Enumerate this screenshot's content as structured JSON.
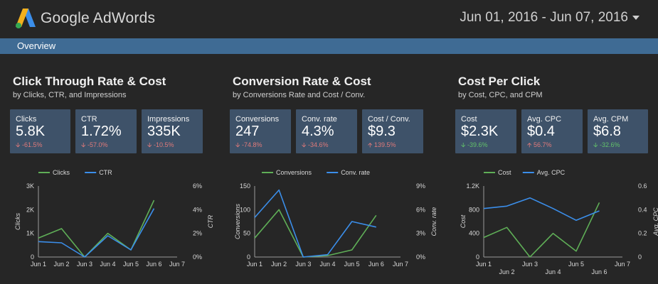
{
  "header": {
    "brand": "Google AdWords",
    "date_range": "Jun 01, 2016 - Jun 07, 2016"
  },
  "nav": {
    "overview": "Overview"
  },
  "colors": {
    "green": "#5fae57",
    "blue": "#3b8eea",
    "card": "#3e5269",
    "bar": "#3f6b94"
  },
  "sections": [
    {
      "title": "Click Through Rate & Cost",
      "subtitle": "by Clicks, CTR, and Impressions",
      "cards": [
        {
          "label": "Clicks",
          "value": "5.8K",
          "delta": "-61.5%",
          "dir": "down"
        },
        {
          "label": "CTR",
          "value": "1.72%",
          "delta": "-57.0%",
          "dir": "down"
        },
        {
          "label": "Impressions",
          "value": "335K",
          "delta": "-10.5%",
          "dir": "down"
        }
      ]
    },
    {
      "title": "Conversion Rate & Cost",
      "subtitle": "by Conversions Rate and Cost / Conv.",
      "cards": [
        {
          "label": "Conversions",
          "value": "247",
          "delta": "-74.8%",
          "dir": "down"
        },
        {
          "label": "Conv. rate",
          "value": "4.3%",
          "delta": "-34.6%",
          "dir": "down"
        },
        {
          "label": "Cost / Conv.",
          "value": "$9.3",
          "delta": "139.5%",
          "dir": "up-bad"
        }
      ]
    },
    {
      "title": "Cost Per Click",
      "subtitle": "by Cost, CPC, and CPM",
      "cards": [
        {
          "label": "Cost",
          "value": "$2.3K",
          "delta": "-39.6%",
          "dir": "down-good"
        },
        {
          "label": "Avg. CPC",
          "value": "$0.4",
          "delta": "56.7%",
          "dir": "up-bad"
        },
        {
          "label": "Avg. CPM",
          "value": "$6.8",
          "delta": "-32.6%",
          "dir": "down-good"
        }
      ]
    }
  ],
  "chart_data": [
    {
      "type": "line",
      "categories": [
        "Jun 1",
        "Jun 2",
        "Jun 3",
        "Jun 4",
        "Jun 5",
        "Jun 6",
        "Jun 7"
      ],
      "series": [
        {
          "name": "Clicks",
          "axis": "left",
          "color": "#5fae57",
          "values": [
            800,
            1200,
            0,
            1000,
            300,
            2400,
            null
          ]
        },
        {
          "name": "CTR",
          "axis": "right",
          "color": "#3b8eea",
          "values": [
            1.3,
            1.2,
            0,
            1.8,
            0.6,
            4.1,
            null
          ]
        }
      ],
      "ylabel": "Clicks",
      "ylim": [
        0,
        3000
      ],
      "yticks": [
        "0",
        "1K",
        "2K",
        "3K"
      ],
      "y2label": "CTR",
      "y2lim": [
        0,
        6
      ],
      "y2ticks": [
        "0%",
        "2%",
        "4%",
        "6%"
      ],
      "legend": "top-left"
    },
    {
      "type": "line",
      "categories": [
        "Jun 1",
        "Jun 2",
        "Jun 3",
        "Jun 4",
        "Jun 5",
        "Jun 6",
        "Jun 7"
      ],
      "series": [
        {
          "name": "Conversions",
          "axis": "left",
          "color": "#5fae57",
          "values": [
            40,
            100,
            0,
            3,
            15,
            88,
            null
          ]
        },
        {
          "name": "Conv. rate",
          "axis": "right",
          "color": "#3b8eea",
          "values": [
            5.0,
            8.5,
            0,
            0.3,
            4.5,
            3.8,
            null
          ]
        }
      ],
      "ylabel": "Conversions",
      "ylim": [
        0,
        150
      ],
      "yticks": [
        "0",
        "50",
        "100",
        "150"
      ],
      "y2label": "Conv. rate",
      "y2lim": [
        0,
        9
      ],
      "y2ticks": [
        "0%",
        "3%",
        "6%",
        "9%"
      ],
      "legend": "top-left"
    },
    {
      "type": "line",
      "categories": [
        "Jun 1",
        "Jun 2",
        "Jun 3",
        "Jun 4",
        "Jun 5",
        "Jun 6",
        "Jun 7"
      ],
      "series": [
        {
          "name": "Cost",
          "axis": "left",
          "color": "#5fae57",
          "values": [
            330,
            500,
            0,
            400,
            100,
            920,
            null
          ]
        },
        {
          "name": "Avg. CPC",
          "axis": "right",
          "color": "#3b8eea",
          "values": [
            0.41,
            0.43,
            0.5,
            0.41,
            0.31,
            0.39,
            null
          ]
        }
      ],
      "ylabel": "Cost",
      "ylim": [
        0,
        1200
      ],
      "yticks": [
        "0",
        "400",
        "800",
        "1.2K"
      ],
      "y2label": "Avg. CPC",
      "y2lim": [
        0,
        0.6
      ],
      "y2ticks": [
        "0",
        "0.2",
        "0.4",
        "0.6"
      ],
      "legend": "top-left",
      "stagger_labels": true
    }
  ]
}
